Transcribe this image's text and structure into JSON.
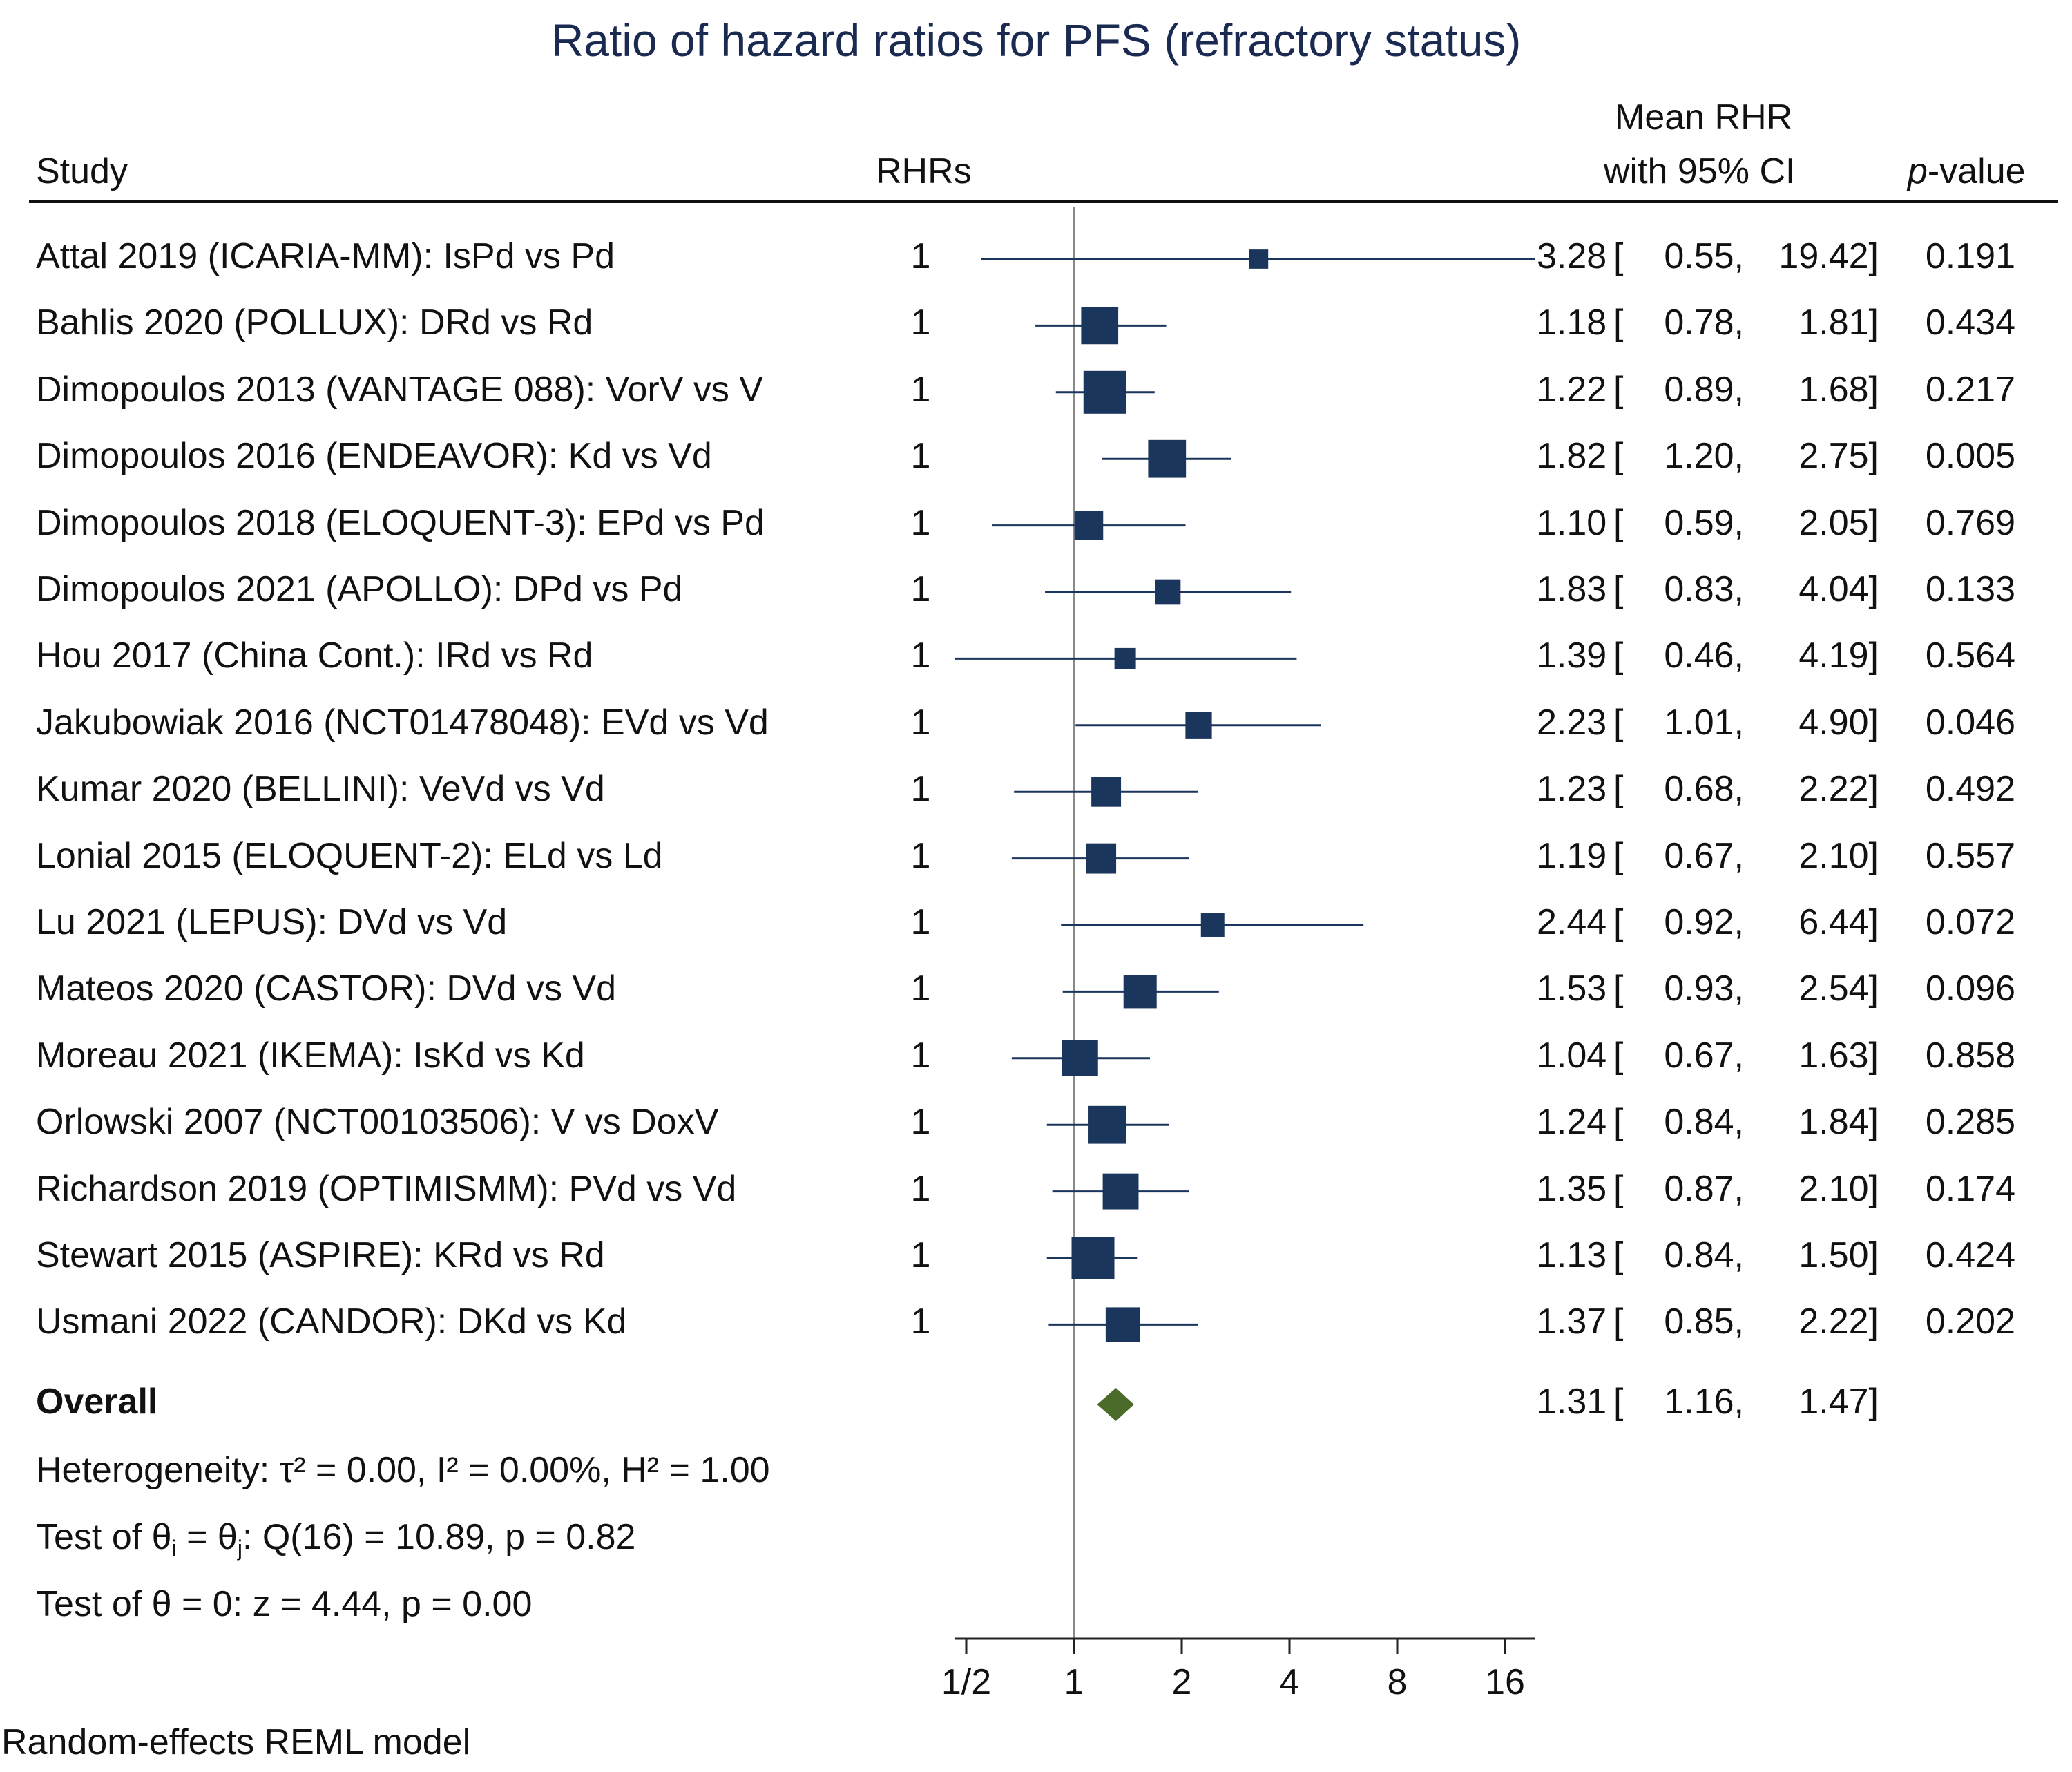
{
  "title": "Ratio of hazard ratios for PFS (refractory status)",
  "headers": {
    "study": "Study",
    "rhrs": "RHRs",
    "mean_line1": "Mean RHR",
    "mean_line2": "with 95% CI",
    "pvalue_italic": "p",
    "pvalue_rest": "-value"
  },
  "footer": {
    "heterogeneity": "Heterogeneity: τ² = 0.00, I² = 0.00%, H² = 1.00",
    "test_theta_pre": "Test of θ",
    "test_theta_sub_i": "i",
    "test_theta_mid": " = θ",
    "test_theta_sub_j": "j",
    "test_theta_post": ": Q(16) = 10.89, p = 0.82",
    "test_zero": "Test of θ = 0: z = 4.44, p = 0.00",
    "model": "Random-effects REML model"
  },
  "colors": {
    "marker": "#1b365d",
    "overall": "#4b6b2a",
    "title": "#1a2a50",
    "refline": "#8a8a8a"
  },
  "chart_data": {
    "type": "forest",
    "x_scale": "log2",
    "xlim": [
      0.45,
      22
    ],
    "ticks": [
      0.5,
      1,
      2,
      4,
      8,
      16
    ],
    "tick_labels": [
      "1/2",
      "1",
      "2",
      "4",
      "8",
      "16"
    ],
    "reference_line": 1,
    "studies": [
      {
        "label": "Attal 2019 (ICARIA-MM): IsPd vs Pd",
        "rhrs": "1",
        "est": 3.28,
        "lo": 0.55,
        "hi": 19.42,
        "est_text": "3.28",
        "lo_text": "0.55,",
        "hi_text": "19.42]",
        "p": "0.191",
        "weight": 0.2
      },
      {
        "label": "Bahlis 2020 (POLLUX): DRd vs Rd",
        "rhrs": "1",
        "est": 1.18,
        "lo": 0.78,
        "hi": 1.81,
        "est_text": "1.18",
        "lo_text": "0.78,",
        "hi_text": "1.81]",
        "p": "0.434",
        "weight": 0.75
      },
      {
        "label": "Dimopoulos 2013 (VANTAGE 088): VorV vs V",
        "rhrs": "1",
        "est": 1.22,
        "lo": 0.89,
        "hi": 1.68,
        "est_text": "1.22",
        "lo_text": "0.89,",
        "hi_text": "1.68]",
        "p": "0.217",
        "weight": 1.0
      },
      {
        "label": "Dimopoulos 2016 (ENDEAVOR): Kd vs Vd",
        "rhrs": "1",
        "est": 1.82,
        "lo": 1.2,
        "hi": 2.75,
        "est_text": "1.82",
        "lo_text": "1.20,",
        "hi_text": "2.75]",
        "p": "0.005",
        "weight": 0.78
      },
      {
        "label": "Dimopoulos 2018 (ELOQUENT-3): EPd vs Pd",
        "rhrs": "1",
        "est": 1.1,
        "lo": 0.59,
        "hi": 2.05,
        "est_text": "1.10",
        "lo_text": "0.59,",
        "hi_text": "2.05]",
        "p": "0.769",
        "weight": 0.45
      },
      {
        "label": "Dimopoulos 2021 (APOLLO): DPd vs Pd",
        "rhrs": "1",
        "est": 1.83,
        "lo": 0.83,
        "hi": 4.04,
        "est_text": "1.83",
        "lo_text": "0.83,",
        "hi_text": "4.04]",
        "p": "0.133",
        "weight": 0.35
      },
      {
        "label": "Hou 2017 (China Cont.): IRd vs Rd",
        "rhrs": "1",
        "est": 1.39,
        "lo": 0.46,
        "hi": 4.19,
        "est_text": "1.39",
        "lo_text": "0.46,",
        "hi_text": "4.19]",
        "p": "0.564",
        "weight": 0.25
      },
      {
        "label": "Jakubowiak 2016 (NCT01478048): EVd vs Vd",
        "rhrs": "1",
        "est": 2.23,
        "lo": 1.01,
        "hi": 4.9,
        "est_text": "2.23",
        "lo_text": "1.01,",
        "hi_text": "4.90]",
        "p": "0.046",
        "weight": 0.38
      },
      {
        "label": "Kumar 2020 (BELLINI): VeVd vs Vd",
        "rhrs": "1",
        "est": 1.23,
        "lo": 0.68,
        "hi": 2.22,
        "est_text": "1.23",
        "lo_text": "0.68,",
        "hi_text": "2.22]",
        "p": "0.492",
        "weight": 0.48
      },
      {
        "label": "Lonial 2015 (ELOQUENT-2): ELd vs Ld",
        "rhrs": "1",
        "est": 1.19,
        "lo": 0.67,
        "hi": 2.1,
        "est_text": "1.19",
        "lo_text": "0.67,",
        "hi_text": "2.10]",
        "p": "0.557",
        "weight": 0.5
      },
      {
        "label": "Lu 2021 (LEPUS): DVd vs Vd",
        "rhrs": "1",
        "est": 2.44,
        "lo": 0.92,
        "hi": 6.44,
        "est_text": "2.44",
        "lo_text": "0.92,",
        "hi_text": "6.44]",
        "p": "0.072",
        "weight": 0.3
      },
      {
        "label": "Mateos 2020 (CASTOR): DVd vs Vd",
        "rhrs": "1",
        "est": 1.53,
        "lo": 0.93,
        "hi": 2.54,
        "est_text": "1.53",
        "lo_text": "0.93,",
        "hi_text": "2.54]",
        "p": "0.096",
        "weight": 0.6
      },
      {
        "label": "Moreau 2021 (IKEMA): IsKd vs Kd",
        "rhrs": "1",
        "est": 1.04,
        "lo": 0.67,
        "hi": 1.63,
        "est_text": "1.04",
        "lo_text": "0.67,",
        "hi_text": "1.63]",
        "p": "0.858",
        "weight": 0.7
      },
      {
        "label": "Orlowski 2007 (NCT00103506): V vs DoxV",
        "rhrs": "1",
        "est": 1.24,
        "lo": 0.84,
        "hi": 1.84,
        "est_text": "1.24",
        "lo_text": "0.84,",
        "hi_text": "1.84]",
        "p": "0.285",
        "weight": 0.78
      },
      {
        "label": "Richardson 2019 (OPTIMISMM): PVd vs Vd",
        "rhrs": "1",
        "est": 1.35,
        "lo": 0.87,
        "hi": 2.1,
        "est_text": "1.35",
        "lo_text": "0.87,",
        "hi_text": "2.10]",
        "p": "0.174",
        "weight": 0.7
      },
      {
        "label": "Stewart 2015 (ASPIRE): KRd vs Rd",
        "rhrs": "1",
        "est": 1.13,
        "lo": 0.84,
        "hi": 1.5,
        "est_text": "1.13",
        "lo_text": "0.84,",
        "hi_text": "1.50]",
        "p": "0.424",
        "weight": 1.0
      },
      {
        "label": "Usmani 2022 (CANDOR): DKd vs Kd",
        "rhrs": "1",
        "est": 1.37,
        "lo": 0.85,
        "hi": 2.22,
        "est_text": "1.37",
        "lo_text": "0.85,",
        "hi_text": "2.22]",
        "p": "0.202",
        "weight": 0.65
      }
    ],
    "overall": {
      "label": "Overall",
      "est": 1.31,
      "lo": 1.16,
      "hi": 1.47,
      "est_text": "1.31",
      "lo_text": "1.16,",
      "hi_text": "1.47]"
    }
  }
}
